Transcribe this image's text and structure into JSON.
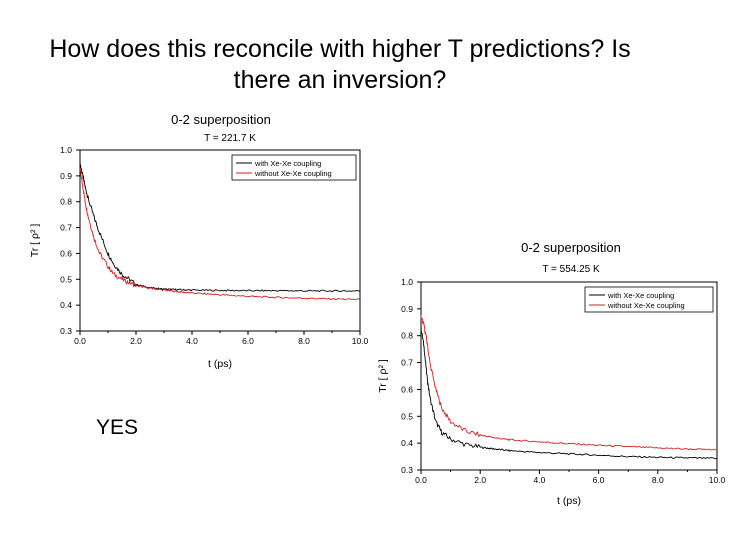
{
  "slide": {
    "question_line1": "How does this reconcile with higher T predictions? Is",
    "question_line2": "there an inversion?",
    "answer": "YES"
  },
  "chart_data": [
    {
      "type": "line",
      "title": "0-2 superposition",
      "subtitle": "T = 221.7 K",
      "xlabel": "t (ps)",
      "ylabel": "Tr [ ρ² ]",
      "xlim": [
        0,
        10
      ],
      "ylim": [
        0.3,
        1.0
      ],
      "xticks": [
        0,
        2,
        4,
        6,
        8,
        10
      ],
      "xtick_labels": [
        "0.0",
        "2.0",
        "4.0",
        "6.0",
        "8.0",
        "10.0"
      ],
      "yticks": [
        0.3,
        0.4,
        0.5,
        0.6,
        0.7,
        0.8,
        0.9,
        1.0
      ],
      "ytick_labels": [
        "0.3",
        "0.4",
        "0.5",
        "0.6",
        "0.7",
        "0.8",
        "0.9",
        "1.0"
      ],
      "legend_position": "top-right",
      "grid": false,
      "series": [
        {
          "name": "with Xe-Xe coupling",
          "color": "#000000",
          "x": [
            0,
            0.1,
            0.2,
            0.3,
            0.5,
            0.7,
            1.0,
            1.2,
            1.5,
            2.0,
            2.5,
            3.0,
            3.5,
            4.0,
            5.0,
            6.0,
            7.0,
            8.0,
            9.0,
            10.0
          ],
          "y": [
            0.95,
            0.9,
            0.85,
            0.81,
            0.74,
            0.68,
            0.6,
            0.56,
            0.52,
            0.48,
            0.467,
            0.462,
            0.46,
            0.458,
            0.457,
            0.456,
            0.456,
            0.455,
            0.455,
            0.455
          ]
        },
        {
          "name": "without Xe-Xe coupling",
          "color": "#d42020",
          "x": [
            0,
            0.1,
            0.2,
            0.3,
            0.5,
            0.7,
            1.0,
            1.2,
            1.5,
            2.0,
            2.5,
            3.0,
            3.5,
            4.0,
            5.0,
            6.0,
            7.0,
            8.0,
            9.0,
            10.0
          ],
          "y": [
            0.93,
            0.86,
            0.79,
            0.74,
            0.66,
            0.6,
            0.55,
            0.52,
            0.5,
            0.475,
            0.465,
            0.458,
            0.452,
            0.447,
            0.44,
            0.434,
            0.43,
            0.427,
            0.424,
            0.422
          ]
        }
      ]
    },
    {
      "type": "line",
      "title": "0-2 superposition",
      "subtitle": "T = 554.25 K",
      "xlabel": "t (ps)",
      "ylabel": "Tr [ ρ² ]",
      "xlim": [
        0,
        10
      ],
      "ylim": [
        0.3,
        1.0
      ],
      "xticks": [
        0,
        2,
        4,
        6,
        8,
        10
      ],
      "xtick_labels": [
        "0.0",
        "2.0",
        "4.0",
        "6.0",
        "8.0",
        "10.0"
      ],
      "yticks": [
        0.3,
        0.4,
        0.5,
        0.6,
        0.7,
        0.8,
        0.9,
        1.0
      ],
      "ytick_labels": [
        "0.3",
        "0.4",
        "0.5",
        "0.6",
        "0.7",
        "0.8",
        "0.9",
        "1.0"
      ],
      "legend_position": "top-right",
      "grid": false,
      "series": [
        {
          "name": "with Xe-Xe coupling",
          "color": "#000000",
          "x": [
            0,
            0.1,
            0.2,
            0.3,
            0.5,
            0.7,
            1.0,
            1.5,
            2.0,
            2.5,
            3.0,
            4.0,
            5.0,
            6.0,
            7.0,
            8.0,
            9.0,
            10.0
          ],
          "y": [
            0.83,
            0.76,
            0.65,
            0.57,
            0.48,
            0.44,
            0.415,
            0.395,
            0.385,
            0.378,
            0.372,
            0.365,
            0.36,
            0.355,
            0.35,
            0.347,
            0.345,
            0.343
          ]
        },
        {
          "name": "without Xe-Xe coupling",
          "color": "#d42020",
          "x": [
            0,
            0.1,
            0.2,
            0.3,
            0.5,
            0.7,
            1.0,
            1.5,
            2.0,
            2.5,
            3.0,
            4.0,
            5.0,
            6.0,
            7.0,
            8.0,
            9.0,
            10.0
          ],
          "y": [
            0.87,
            0.84,
            0.78,
            0.7,
            0.6,
            0.53,
            0.48,
            0.445,
            0.43,
            0.42,
            0.412,
            0.405,
            0.398,
            0.392,
            0.387,
            0.382,
            0.378,
            0.375
          ]
        }
      ]
    }
  ]
}
